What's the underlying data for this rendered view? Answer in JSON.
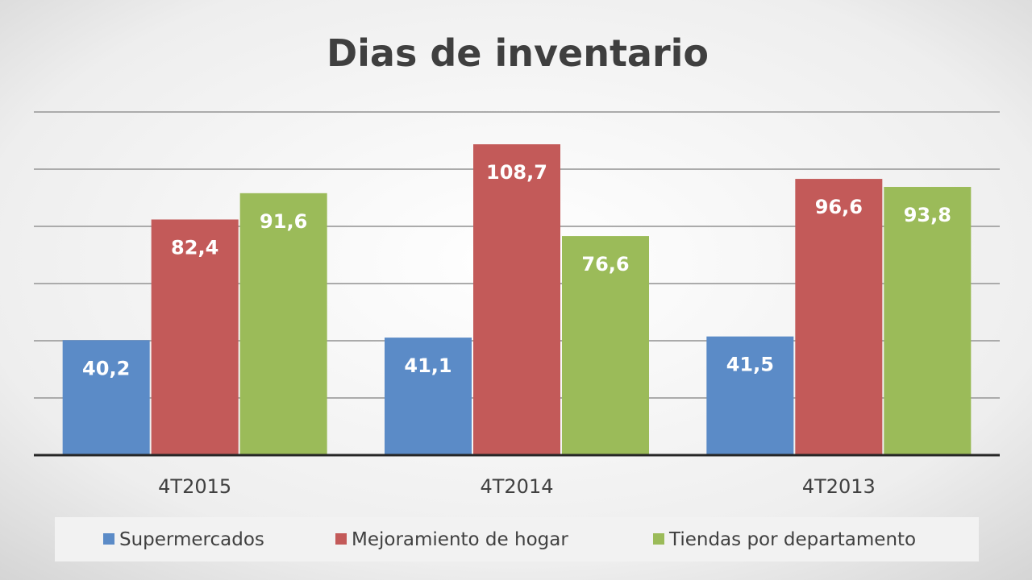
{
  "chart_data": {
    "type": "bar",
    "title": "Dias de inventario",
    "categories": [
      "4T2015",
      "4T2014",
      "4T2013"
    ],
    "series": [
      {
        "name": "Supermercados",
        "values": [
          40.2,
          41.1,
          41.5
        ],
        "labels": [
          "40,2",
          "41,1",
          "41,5"
        ],
        "color": "#5b8bc7"
      },
      {
        "name": "Mejoramiento de hogar",
        "values": [
          82.4,
          108.7,
          96.6
        ],
        "labels": [
          "82,4",
          "108,7",
          "96,6"
        ],
        "color": "#c35a59"
      },
      {
        "name": "Tiendas por departamento",
        "values": [
          91.6,
          76.6,
          93.8
        ],
        "labels": [
          "91,6",
          "76,6",
          "93,8"
        ],
        "color": "#9bbb59"
      }
    ],
    "ylim": [
      0,
      120
    ],
    "y_gridline_step": 20,
    "grid": true,
    "legend_position": "bottom",
    "data_labels": "inside-end",
    "colors": {
      "background": "#e6e6e6",
      "title": "#3f3f3f",
      "axis": "#262626",
      "grid": "#ababab",
      "tick_label": "#404040",
      "data_label": "#ffffff",
      "legend_bg": "#f2f2f2"
    }
  }
}
